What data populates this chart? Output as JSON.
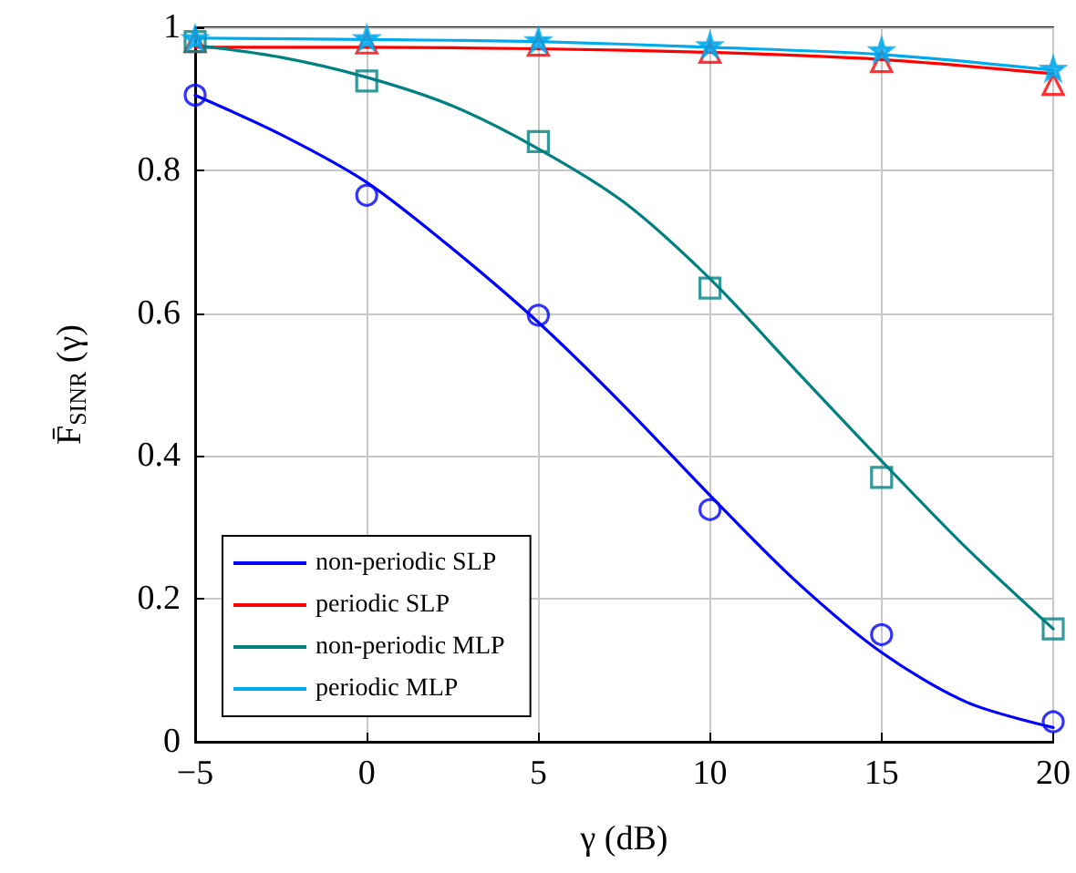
{
  "chart_data": {
    "type": "line",
    "xlabel": "γ (dB)",
    "ylabel": "F̄$_{SINR}$ (γ)",
    "xlim": [
      -5,
      20
    ],
    "xticks": [
      -5,
      0,
      5,
      10,
      15,
      20
    ],
    "ylim": [
      0,
      1
    ],
    "yticks": [
      0,
      0.2,
      0.4,
      0.6,
      0.8,
      1
    ],
    "grid": true,
    "legend": "bottom left",
    "line_style": "solid",
    "series": [
      {
        "name": "non-periodic SLP",
        "color": "#0000ff",
        "marker": "none",
        "x": [
          -5,
          -2.5,
          0,
          2.5,
          5,
          7.5,
          10,
          12.5,
          15,
          17.5,
          20
        ],
        "values": [
          0.905,
          0.85,
          0.783,
          0.69,
          0.587,
          0.47,
          0.345,
          0.225,
          0.125,
          0.055,
          0.02
        ]
      },
      {
        "name": "periodic SLP",
        "color": "#ff0000",
        "marker": "none",
        "x": [
          -5,
          0,
          5,
          10,
          15,
          20
        ],
        "values": [
          0.972,
          0.972,
          0.97,
          0.965,
          0.955,
          0.935
        ]
      },
      {
        "name": "non-periodic MLP",
        "color": "#008080",
        "marker": "none",
        "x": [
          -5,
          -2.5,
          0,
          2.5,
          5,
          7.5,
          10,
          12.5,
          15,
          17.5,
          20
        ],
        "values": [
          0.975,
          0.958,
          0.93,
          0.89,
          0.83,
          0.755,
          0.648,
          0.52,
          0.393,
          0.27,
          0.158
        ]
      },
      {
        "name": "periodic MLP",
        "color": "#00aaee",
        "marker": "none",
        "x": [
          -5,
          0,
          5,
          10,
          15,
          20
        ],
        "values": [
          0.985,
          0.983,
          0.98,
          0.972,
          0.962,
          0.94
        ]
      },
      {
        "color": "#0000ff",
        "type": "scatter",
        "marker": "circle",
        "x": [
          -5,
          0,
          5,
          10,
          15,
          20
        ],
        "values": [
          0.905,
          0.765,
          0.597,
          0.325,
          0.15,
          0.028
        ]
      },
      {
        "color": "#ff0000",
        "type": "scatter",
        "marker": "triangle",
        "x": [
          -5,
          0,
          5,
          10,
          15,
          20
        ],
        "values": [
          0.98,
          0.978,
          0.975,
          0.965,
          0.952,
          0.92
        ]
      },
      {
        "color": "#008080",
        "type": "scatter",
        "marker": "square",
        "x": [
          -5,
          0,
          5,
          10,
          15,
          20
        ],
        "values": [
          0.98,
          0.925,
          0.84,
          0.635,
          0.37,
          0.158
        ]
      },
      {
        "color": "#00aaee",
        "type": "scatter",
        "marker": "star",
        "x": [
          -5,
          0,
          5,
          10,
          15,
          20
        ],
        "values": [
          0.985,
          0.985,
          0.982,
          0.975,
          0.968,
          0.942
        ]
      }
    ]
  }
}
